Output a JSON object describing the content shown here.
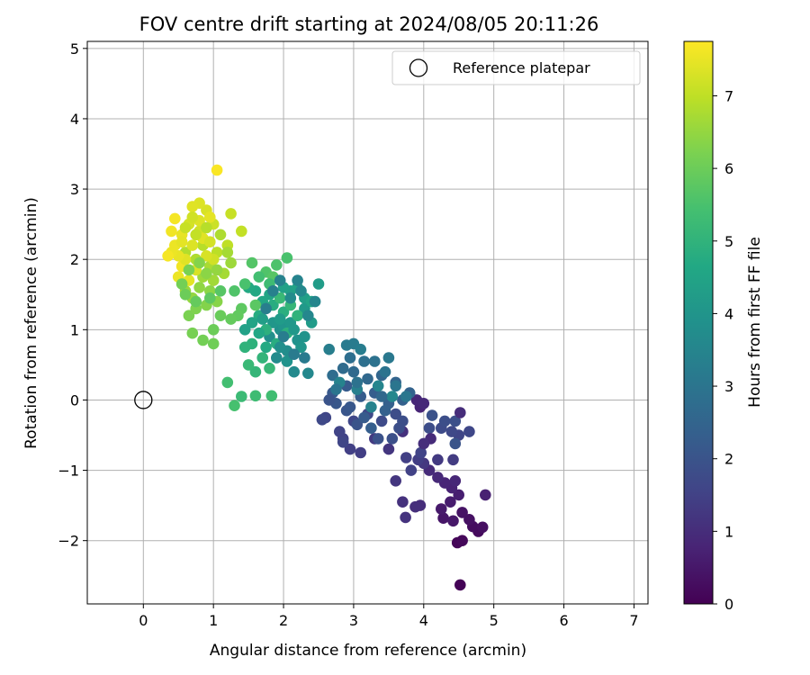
{
  "chart_data": {
    "type": "scatter",
    "title": "FOV centre drift starting at 2024/08/05 20:11:26",
    "xlabel": "Angular distance from reference (arcmin)",
    "ylabel": "Rotation from reference (arcmin)",
    "xlim": [
      -0.8,
      7.2
    ],
    "ylim": [
      -2.9,
      5.1
    ],
    "x_ticks": [
      0,
      1,
      2,
      3,
      4,
      5,
      6,
      7
    ],
    "x_tick_labels": [
      "0",
      "1",
      "2",
      "3",
      "4",
      "5",
      "6",
      "7"
    ],
    "y_ticks": [
      -2,
      -1,
      0,
      1,
      2,
      3,
      4,
      5
    ],
    "y_tick_labels": [
      "−2",
      "−1",
      "0",
      "1",
      "2",
      "3",
      "4",
      "5"
    ],
    "grid": true,
    "legend": {
      "placement": "top-right",
      "entries": [
        {
          "label": "Reference platepar",
          "marker": "open-circle"
        }
      ]
    },
    "reference_point": {
      "x": 0,
      "y": 0
    },
    "colorbar": {
      "label": "Hours from first FF file",
      "range": [
        0,
        7.75
      ],
      "ticks": [
        0,
        1,
        2,
        3,
        4,
        5,
        6,
        7
      ],
      "tick_labels": [
        "0",
        "1",
        "2",
        "3",
        "4",
        "5",
        "6",
        "7"
      ],
      "colormap": "viridis"
    },
    "points": [
      [
        4.52,
        -2.63,
        0.05
      ],
      [
        4.48,
        -2.03,
        0.1
      ],
      [
        4.55,
        -2.0,
        0.15
      ],
      [
        4.78,
        -1.87,
        0.2
      ],
      [
        4.7,
        -1.8,
        0.25
      ],
      [
        4.84,
        -1.81,
        0.3
      ],
      [
        4.65,
        -1.7,
        0.35
      ],
      [
        4.55,
        -1.6,
        0.4
      ],
      [
        4.28,
        -1.68,
        0.45
      ],
      [
        4.42,
        -1.72,
        0.5
      ],
      [
        4.25,
        -1.55,
        0.55
      ],
      [
        4.38,
        -1.45,
        0.6
      ],
      [
        4.5,
        -1.35,
        0.65
      ],
      [
        4.88,
        -1.35,
        0.7
      ],
      [
        4.4,
        -1.25,
        0.75
      ],
      [
        4.3,
        -1.18,
        0.8
      ],
      [
        4.45,
        -1.15,
        0.85
      ],
      [
        4.2,
        -1.1,
        0.9
      ],
      [
        4.08,
        -1.0,
        0.95
      ],
      [
        3.95,
        -1.5,
        1.0
      ],
      [
        3.88,
        -1.52,
        1.05
      ],
      [
        3.7,
        -1.45,
        1.1
      ],
      [
        3.74,
        -1.67,
        1.15
      ],
      [
        3.6,
        -1.15,
        1.2
      ],
      [
        4.0,
        -0.9,
        1.25
      ],
      [
        4.2,
        -0.85,
        1.3
      ],
      [
        4.42,
        -0.85,
        1.35
      ],
      [
        3.92,
        -0.85,
        1.4
      ],
      [
        3.75,
        -0.82,
        1.45
      ],
      [
        3.82,
        -1.0,
        1.5
      ],
      [
        3.96,
        -0.75,
        1.55
      ],
      [
        4.5,
        -0.5,
        1.6
      ],
      [
        4.65,
        -0.45,
        1.65
      ],
      [
        4.4,
        -0.45,
        1.7
      ],
      [
        4.25,
        -0.4,
        1.75
      ],
      [
        4.08,
        -0.4,
        1.8
      ],
      [
        4.3,
        -0.3,
        1.85
      ],
      [
        4.45,
        -0.3,
        1.9
      ],
      [
        4.12,
        -0.22,
        1.95
      ],
      [
        4.45,
        -0.62,
        2.0
      ],
      [
        3.95,
        -0.1,
        0.8
      ],
      [
        3.9,
        0.0,
        0.85
      ],
      [
        4.0,
        -0.05,
        0.9
      ],
      [
        4.1,
        -0.55,
        0.95
      ],
      [
        4.52,
        -0.18,
        1.0
      ],
      [
        4.0,
        -0.62,
        1.05
      ],
      [
        3.7,
        -0.45,
        1.1
      ],
      [
        3.5,
        -0.7,
        1.2
      ],
      [
        3.3,
        -0.55,
        1.3
      ],
      [
        3.1,
        -0.75,
        1.4
      ],
      [
        2.95,
        -0.7,
        1.45
      ],
      [
        2.85,
        -0.55,
        1.5
      ],
      [
        2.8,
        -0.45,
        1.55
      ],
      [
        2.6,
        -0.25,
        1.6
      ],
      [
        3.0,
        -0.3,
        1.65
      ],
      [
        3.2,
        -0.2,
        1.7
      ],
      [
        3.4,
        -0.3,
        1.75
      ],
      [
        3.6,
        -0.2,
        1.8
      ],
      [
        3.7,
        -0.3,
        1.85
      ],
      [
        3.55,
        -0.55,
        1.9
      ],
      [
        3.35,
        -0.55,
        1.95
      ],
      [
        3.05,
        -0.35,
        2.0
      ],
      [
        2.9,
        -0.15,
        2.05
      ],
      [
        2.75,
        -0.05,
        2.1
      ],
      [
        2.7,
        0.1,
        2.15
      ],
      [
        2.9,
        0.2,
        2.2
      ],
      [
        3.1,
        0.05,
        2.25
      ],
      [
        3.3,
        0.1,
        2.3
      ],
      [
        3.5,
        -0.05,
        2.35
      ],
      [
        3.7,
        0.0,
        2.4
      ],
      [
        3.8,
        0.1,
        2.45
      ],
      [
        3.6,
        0.25,
        2.5
      ],
      [
        3.4,
        0.35,
        2.55
      ],
      [
        3.2,
        0.3,
        2.6
      ],
      [
        3.0,
        0.4,
        2.65
      ],
      [
        2.85,
        0.45,
        2.7
      ],
      [
        2.7,
        0.35,
        2.75
      ],
      [
        2.95,
        0.6,
        2.8
      ],
      [
        3.15,
        0.55,
        2.85
      ],
      [
        3.3,
        0.55,
        2.9
      ],
      [
        3.45,
        0.4,
        2.95
      ],
      [
        3.6,
        0.2,
        3.0
      ],
      [
        3.75,
        0.05,
        3.05
      ],
      [
        3.5,
        0.6,
        3.1
      ],
      [
        2.9,
        0.78,
        3.15
      ],
      [
        3.0,
        0.8,
        3.2
      ],
      [
        3.1,
        0.72,
        3.25
      ],
      [
        2.65,
        0.72,
        3.3
      ],
      [
        3.05,
        0.15,
        3.35
      ],
      [
        3.25,
        -0.1,
        3.4
      ],
      [
        2.8,
        0.25,
        3.45
      ],
      [
        3.35,
        0.2,
        3.5
      ],
      [
        3.55,
        0.05,
        3.55
      ],
      [
        2.65,
        0.0,
        2.0
      ],
      [
        2.95,
        -0.1,
        2.1
      ],
      [
        3.15,
        -0.25,
        2.2
      ],
      [
        3.25,
        -0.4,
        2.3
      ],
      [
        3.45,
        -0.15,
        2.4
      ],
      [
        3.65,
        -0.4,
        1.85
      ],
      [
        2.55,
        -0.28,
        1.7
      ],
      [
        2.85,
        -0.6,
        1.6
      ],
      [
        3.4,
        0.05,
        2.6
      ],
      [
        3.05,
        0.25,
        2.9
      ],
      [
        2.75,
        0.15,
        3.0
      ],
      [
        2.35,
        0.38,
        3.6
      ],
      [
        2.15,
        0.4,
        3.65
      ],
      [
        1.9,
        0.6,
        3.7
      ],
      [
        2.05,
        0.7,
        3.75
      ],
      [
        1.8,
        0.9,
        3.8
      ],
      [
        1.95,
        1.0,
        3.85
      ],
      [
        2.2,
        0.85,
        3.9
      ],
      [
        2.3,
        0.9,
        3.95
      ],
      [
        2.0,
        1.05,
        4.0
      ],
      [
        1.85,
        1.1,
        4.05
      ],
      [
        2.1,
        1.1,
        4.1
      ],
      [
        2.3,
        1.3,
        4.15
      ],
      [
        2.4,
        1.1,
        4.2
      ],
      [
        2.5,
        1.65,
        4.25
      ],
      [
        2.3,
        1.45,
        4.3
      ],
      [
        2.1,
        1.55,
        4.35
      ],
      [
        2.0,
        1.6,
        4.4
      ],
      [
        2.2,
        1.6,
        4.45
      ],
      [
        2.4,
        1.4,
        4.5
      ],
      [
        1.8,
        1.5,
        4.55
      ],
      [
        1.7,
        1.4,
        4.6
      ],
      [
        1.6,
        1.55,
        4.65
      ],
      [
        1.5,
        1.6,
        4.7
      ],
      [
        1.65,
        1.2,
        4.75
      ],
      [
        1.85,
        1.35,
        4.8
      ],
      [
        2.0,
        1.25,
        4.85
      ],
      [
        1.75,
        1.0,
        4.9
      ],
      [
        1.55,
        0.8,
        4.95
      ],
      [
        1.45,
        0.75,
        5.0
      ],
      [
        1.7,
        0.6,
        5.05
      ],
      [
        1.6,
        0.4,
        5.1
      ],
      [
        1.8,
        0.45,
        5.15
      ],
      [
        1.5,
        0.5,
        5.2
      ],
      [
        1.4,
        0.05,
        5.25
      ],
      [
        1.6,
        0.06,
        5.3
      ],
      [
        1.83,
        0.06,
        5.35
      ],
      [
        1.2,
        0.25,
        5.4
      ],
      [
        1.3,
        -0.08,
        5.45
      ],
      [
        2.05,
        2.02,
        5.5
      ],
      [
        1.9,
        1.92,
        5.55
      ],
      [
        1.75,
        1.82,
        5.6
      ],
      [
        1.55,
        1.95,
        5.65
      ],
      [
        1.85,
        1.75,
        5.7
      ],
      [
        1.6,
        1.35,
        5.75
      ],
      [
        1.4,
        1.3,
        5.8
      ],
      [
        1.35,
        1.2,
        5.85
      ],
      [
        1.25,
        1.15,
        5.9
      ],
      [
        1.1,
        1.2,
        5.95
      ],
      [
        1.0,
        1.0,
        6.0
      ],
      [
        1.0,
        0.8,
        6.05
      ],
      [
        0.85,
        0.85,
        6.1
      ],
      [
        0.7,
        0.95,
        6.15
      ],
      [
        0.65,
        1.2,
        6.2
      ],
      [
        0.75,
        1.3,
        6.25
      ],
      [
        0.9,
        1.35,
        6.3
      ],
      [
        1.05,
        1.4,
        6.35
      ],
      [
        0.95,
        1.55,
        6.4
      ],
      [
        0.8,
        1.6,
        6.45
      ],
      [
        0.7,
        1.45,
        6.5
      ],
      [
        0.6,
        1.55,
        6.55
      ],
      [
        0.85,
        1.75,
        6.6
      ],
      [
        1.0,
        1.7,
        6.65
      ],
      [
        1.15,
        1.8,
        6.7
      ],
      [
        0.95,
        1.9,
        6.75
      ],
      [
        0.75,
        2.0,
        6.8
      ],
      [
        0.6,
        2.1,
        6.85
      ],
      [
        0.85,
        2.2,
        6.9
      ],
      [
        1.05,
        2.1,
        6.95
      ],
      [
        1.2,
        2.2,
        7.0
      ],
      [
        1.4,
        2.4,
        7.05
      ],
      [
        1.25,
        2.65,
        7.1
      ],
      [
        1.0,
        2.5,
        7.15
      ],
      [
        0.8,
        2.4,
        7.2
      ],
      [
        0.65,
        2.5,
        7.25
      ],
      [
        0.9,
        2.7,
        7.3
      ],
      [
        0.8,
        2.8,
        7.35
      ],
      [
        0.7,
        2.75,
        7.4
      ],
      [
        0.95,
        2.6,
        7.45
      ],
      [
        0.55,
        2.35,
        7.5
      ],
      [
        0.45,
        2.2,
        7.55
      ],
      [
        0.4,
        2.4,
        7.6
      ],
      [
        0.45,
        2.58,
        7.65
      ],
      [
        1.05,
        3.27,
        7.7
      ],
      [
        0.5,
        1.75,
        7.55
      ],
      [
        0.55,
        1.9,
        7.6
      ],
      [
        0.65,
        1.7,
        7.45
      ],
      [
        0.7,
        2.2,
        7.35
      ],
      [
        0.75,
        1.85,
        7.3
      ],
      [
        0.6,
        2.0,
        7.4
      ],
      [
        0.5,
        2.05,
        7.5
      ],
      [
        0.4,
        2.1,
        7.55
      ],
      [
        0.35,
        2.05,
        7.65
      ],
      [
        0.55,
        2.25,
        7.45
      ],
      [
        0.85,
        2.3,
        7.4
      ],
      [
        0.95,
        2.25,
        7.25
      ],
      [
        1.0,
        2.0,
        7.2
      ],
      [
        0.9,
        2.05,
        7.3
      ],
      [
        0.8,
        2.55,
        7.35
      ],
      [
        0.7,
        2.6,
        7.2
      ],
      [
        0.6,
        2.45,
        7.1
      ],
      [
        0.75,
        2.35,
        7.05
      ],
      [
        0.9,
        2.45,
        6.9
      ],
      [
        1.1,
        2.35,
        6.8
      ],
      [
        1.2,
        2.1,
        6.7
      ],
      [
        1.25,
        1.95,
        6.6
      ],
      [
        1.05,
        1.85,
        6.5
      ],
      [
        0.9,
        1.8,
        6.4
      ],
      [
        0.8,
        1.95,
        6.3
      ],
      [
        0.65,
        1.85,
        6.2
      ],
      [
        0.55,
        1.65,
        6.1
      ],
      [
        0.6,
        1.5,
        6.0
      ],
      [
        0.75,
        1.4,
        5.9
      ],
      [
        0.95,
        1.45,
        5.8
      ],
      [
        1.1,
        1.55,
        5.7
      ],
      [
        1.3,
        1.55,
        5.6
      ],
      [
        1.45,
        1.65,
        5.5
      ],
      [
        1.65,
        1.75,
        5.4
      ],
      [
        1.8,
        1.65,
        5.3
      ],
      [
        1.95,
        1.45,
        5.2
      ],
      [
        2.1,
        1.35,
        5.1
      ],
      [
        2.2,
        1.2,
        5.0
      ],
      [
        2.05,
        0.95,
        4.9
      ],
      [
        1.9,
        0.8,
        4.8
      ],
      [
        1.75,
        0.75,
        4.7
      ],
      [
        1.65,
        0.95,
        4.6
      ],
      [
        1.55,
        1.1,
        4.5
      ],
      [
        1.45,
        1.0,
        4.4
      ],
      [
        1.7,
        1.15,
        4.3
      ],
      [
        1.95,
        1.15,
        4.2
      ],
      [
        2.15,
        1.0,
        4.1
      ],
      [
        2.25,
        0.75,
        4.0
      ],
      [
        2.05,
        0.55,
        3.9
      ],
      [
        1.95,
        0.75,
        3.8
      ],
      [
        2.1,
        1.45,
        3.7
      ],
      [
        2.25,
        1.55,
        3.6
      ],
      [
        2.35,
        1.2,
        3.55
      ],
      [
        2.45,
        1.4,
        3.5
      ],
      [
        2.2,
        1.7,
        3.45
      ],
      [
        1.95,
        1.7,
        3.4
      ],
      [
        1.85,
        1.55,
        3.35
      ],
      [
        1.75,
        1.3,
        3.3
      ],
      [
        2.0,
        0.9,
        3.25
      ],
      [
        2.15,
        0.65,
        3.2
      ],
      [
        2.3,
        0.6,
        3.15
      ]
    ]
  }
}
